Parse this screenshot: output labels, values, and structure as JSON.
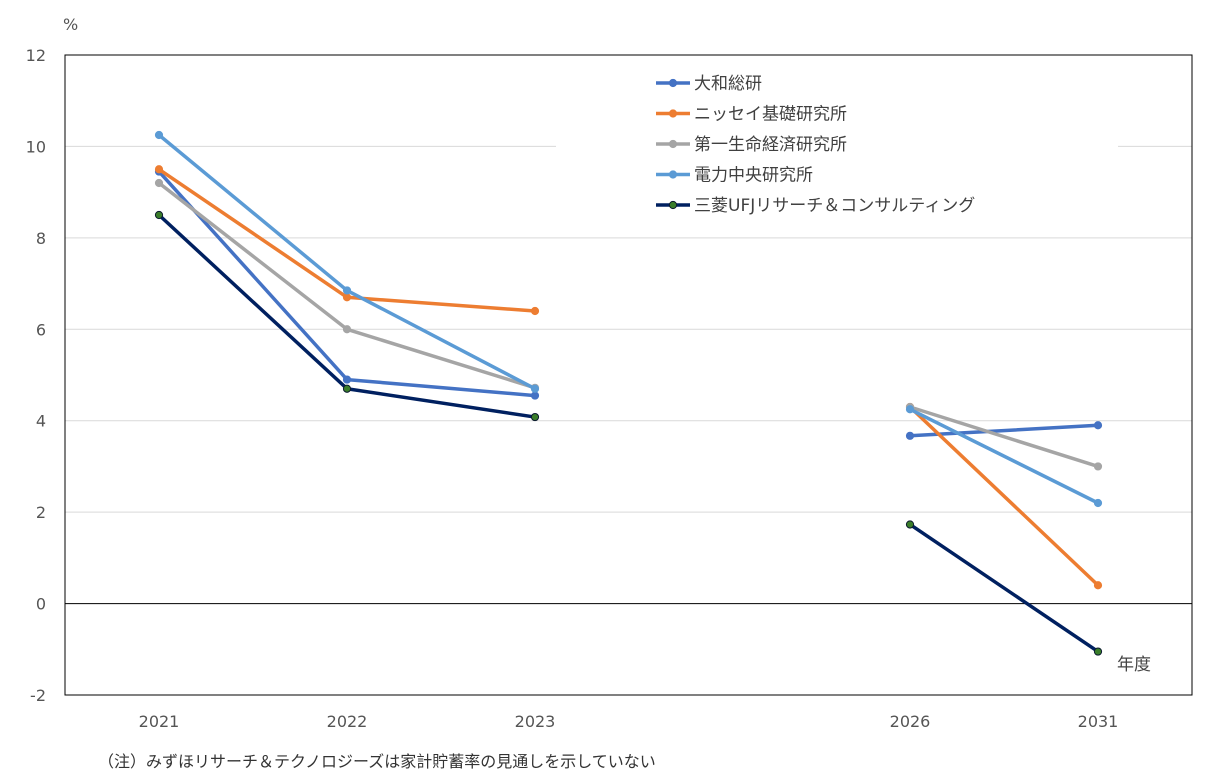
{
  "chart_data": {
    "type": "line",
    "unit_label": "%",
    "xlabel": "年度",
    "x": [
      "2021",
      "2022",
      "2023",
      "2026",
      "2031"
    ],
    "ylim": [
      -2,
      12
    ],
    "yticks": [
      -2,
      0,
      2,
      4,
      6,
      8,
      10,
      12
    ],
    "grid": true,
    "legend_position": "top-right",
    "series": [
      {
        "name": "大和総研",
        "color": "#4472c4",
        "values": [
          9.45,
          4.9,
          4.55,
          3.67,
          3.9
        ]
      },
      {
        "name": "ニッセイ基礎研究所",
        "color": "#ed7d31",
        "values": [
          9.5,
          6.7,
          6.4,
          4.3,
          0.4
        ]
      },
      {
        "name": "第一生命経済研究所",
        "color": "#a5a5a5",
        "values": [
          9.2,
          6.0,
          4.72,
          4.3,
          3.0
        ]
      },
      {
        "name": "電力中央研究所",
        "color": "#5b9bd5",
        "values": [
          10.25,
          6.85,
          4.7,
          4.25,
          2.2
        ]
      },
      {
        "name": "三菱UFJリサーチ＆コンサルティング",
        "color": "#002060",
        "marker_fill": "#3a7d2a",
        "values": [
          8.5,
          4.7,
          4.08,
          1.73,
          -1.05
        ]
      }
    ]
  },
  "note": "（注）みずほリサーチ＆テクノロジーズは家計貯蓄率の見通しを示していない"
}
